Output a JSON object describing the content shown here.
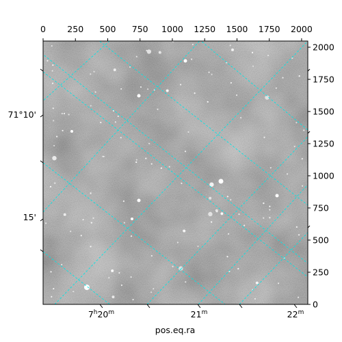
{
  "chart_data": {
    "type": "image",
    "description_kind": "astronomical-image-with-wcs-grid",
    "xlabel": "pos.eq.ra",
    "ylabel": "",
    "pixel_axes": {
      "x": {
        "range": [
          0,
          2048
        ],
        "ticks": [
          0,
          250,
          500,
          750,
          1000,
          1250,
          1500,
          1750,
          2000
        ]
      },
      "y": {
        "range": [
          0,
          2048
        ],
        "ticks": [
          0,
          250,
          500,
          750,
          1000,
          1250,
          1500,
          1750,
          2000
        ]
      }
    },
    "world_axes": {
      "ra_ticks": [
        {
          "label_main": "7",
          "sup1": "h",
          "mid": "20",
          "sup2": "m"
        },
        {
          "label_main": "21",
          "sup1": "",
          "mid": "",
          "sup2": "m"
        },
        {
          "label_main": "22",
          "sup1": "",
          "mid": "",
          "sup2": "m"
        }
      ],
      "dec_ticks": [
        {
          "label": "71°10'"
        },
        {
          "label": "15'"
        }
      ]
    },
    "grid": true,
    "grid_color": "#00e5e5",
    "colormap": "gray"
  }
}
